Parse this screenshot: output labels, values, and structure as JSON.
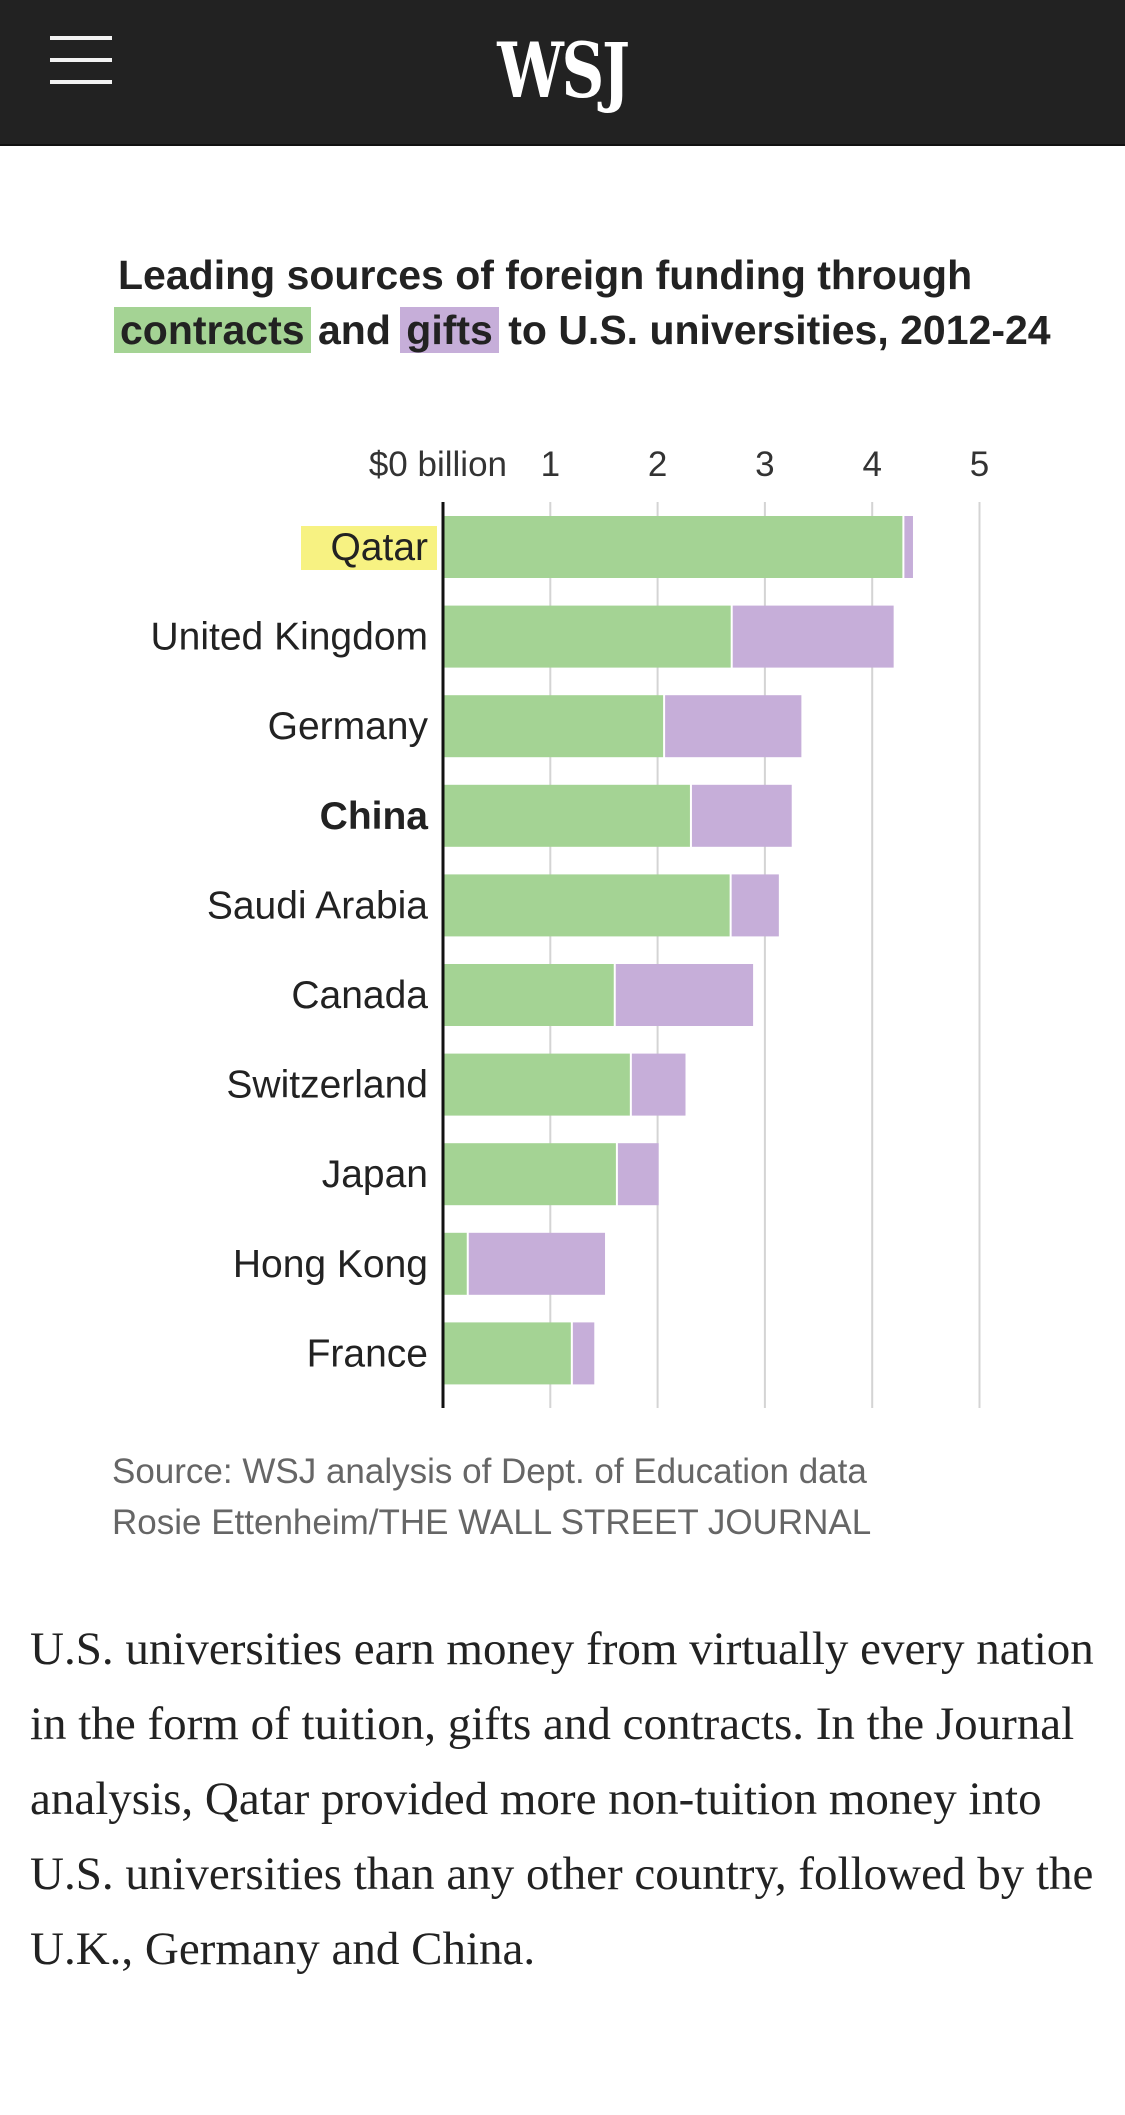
{
  "header": {
    "logo": "WSJ",
    "menu_icon": "hamburger-menu-icon"
  },
  "title": {
    "before": "Leading sources of foreign funding through",
    "contracts": "contracts",
    "and": "and",
    "gifts": "gifts",
    "after": "to U.S. universities, 2012-24"
  },
  "colors": {
    "contracts": "#a4d394",
    "gifts": "#c6aed9",
    "highlight": "#f7f282",
    "background": "#ffffff",
    "topbar": "#222222"
  },
  "chart_data": {
    "type": "bar",
    "orientation": "horizontal",
    "stacked": true,
    "categories": [
      "Qatar",
      "United Kingdom",
      "Germany",
      "China",
      "Saudi Arabia",
      "Canada",
      "Switzerland",
      "Japan",
      "Hong Kong",
      "France"
    ],
    "series": [
      {
        "name": "contracts",
        "values": [
          4.3,
          2.7,
          2.07,
          2.32,
          2.69,
          1.61,
          1.76,
          1.63,
          0.24,
          1.21
        ]
      },
      {
        "name": "gifts",
        "values": [
          0.08,
          1.5,
          1.27,
          0.93,
          0.44,
          1.28,
          0.5,
          0.38,
          1.27,
          0.2
        ]
      }
    ],
    "x_ticks": [
      "$0 billion",
      "1",
      "2",
      "3",
      "4",
      "5"
    ],
    "xlim": [
      0,
      5
    ],
    "xlabel": "",
    "ylabel": "",
    "grid": true,
    "highlighted_category": "Qatar",
    "bold_category": "China"
  },
  "source": {
    "line1": "Source: WSJ analysis of Dept. of Education data",
    "line2": "Rosie Ettenheim/THE WALL STREET JOURNAL"
  },
  "article": {
    "paragraph": "U.S. universities earn money from virtually every nation in the form of tuition, gifts and contracts. In the Journal analysis, Qatar provided more non-tuition money into U.S. universities than any other country, followed by the U.K., Germany and China."
  }
}
